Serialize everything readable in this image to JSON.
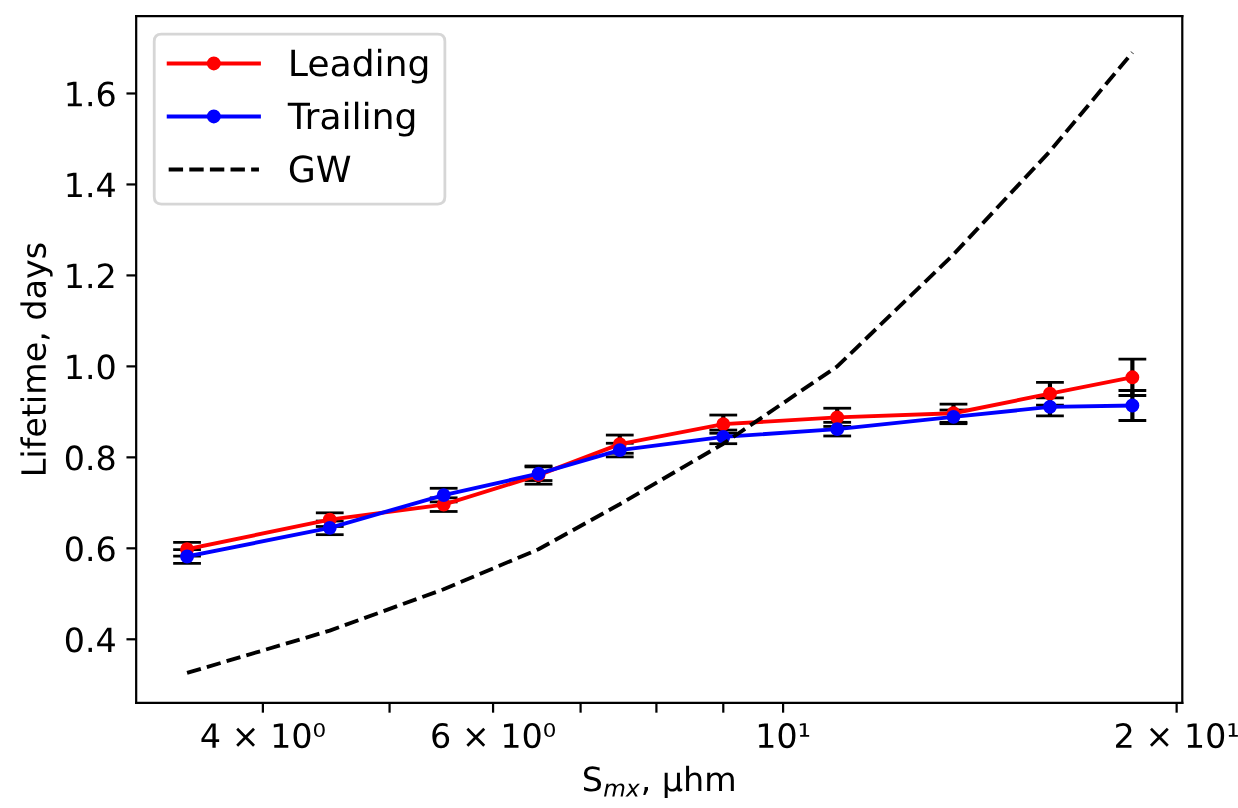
{
  "chart_data": {
    "type": "line",
    "xlabel": "S$_{mx}$, μhm",
    "ylabel": "Lifetime, days",
    "log": "x",
    "legend": "top left",
    "grid": false,
    "xlim": [
      3.2,
      20.2
    ],
    "ylim": [
      0.26,
      1.77
    ],
    "xticks": [
      {
        "value": 4,
        "label": "4 × 10⁰"
      },
      {
        "value": 5,
        "label": null
      },
      {
        "value": 6,
        "label": "6 × 10⁰"
      },
      {
        "value": 7,
        "label": null
      },
      {
        "value": 8,
        "label": null
      },
      {
        "value": 9,
        "label": null
      },
      {
        "value": 10,
        "label": "10¹"
      },
      {
        "value": 20,
        "label": "2 × 10¹"
      }
    ],
    "yticks": [
      0.4,
      0.6,
      0.8,
      {
        "value": 1,
        "label": "1.0"
      },
      1.2,
      1.4,
      1.6
    ],
    "x": [
      3.5,
      4.5,
      5.5,
      6.5,
      7.5,
      9,
      11,
      13.5,
      16,
      18.5
    ],
    "series": [
      {
        "name": "Leading",
        "color": "#ff0000",
        "marker": "circle",
        "line_style": "solid",
        "values": [
          0.598,
          0.663,
          0.696,
          0.761,
          0.829,
          0.873,
          0.888,
          0.897,
          0.94,
          0.976
        ],
        "errors": [
          0.015,
          0.015,
          0.015,
          0.02,
          0.02,
          0.02,
          0.02,
          0.02,
          0.025,
          0.04
        ]
      },
      {
        "name": "Trailing",
        "color": "#0000ff",
        "marker": "circle",
        "line_style": "solid",
        "values": [
          0.582,
          0.645,
          0.717,
          0.764,
          0.816,
          0.845,
          0.862,
          0.889,
          0.911,
          0.914
        ],
        "errors": [
          0.015,
          0.015,
          0.015,
          0.015,
          0.015,
          0.015,
          0.015,
          0.015,
          0.02,
          0.033
        ]
      },
      {
        "name": "GW",
        "color": "#000000",
        "marker": "none",
        "line_style": "dashed",
        "values": [
          0.326,
          0.419,
          0.51,
          0.598,
          0.697,
          0.83,
          1.0,
          1.246,
          1.473,
          1.69
        ]
      }
    ]
  }
}
